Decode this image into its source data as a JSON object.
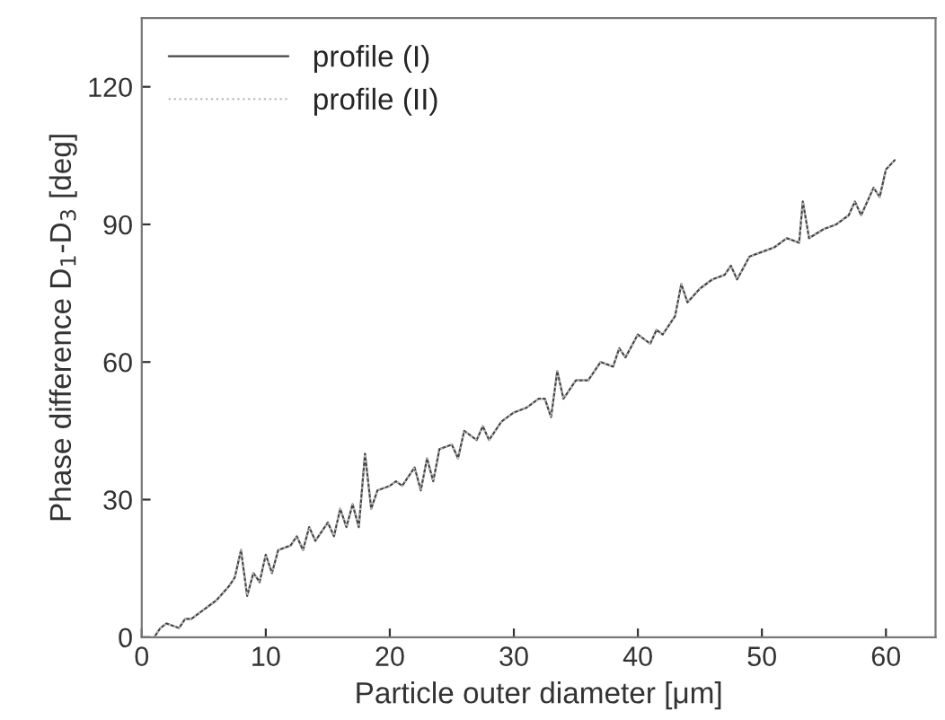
{
  "chart_data": {
    "type": "line",
    "xlabel": "Particle outer diameter [μm]",
    "ylabel": "Phase difference D$_{1}$-D$_{3}$ [deg]",
    "xlim": [
      0,
      64
    ],
    "ylim": [
      0,
      135
    ],
    "xticks": [
      0,
      10,
      20,
      30,
      40,
      50,
      60
    ],
    "yticks": [
      0,
      30,
      60,
      90,
      120
    ],
    "grid": false,
    "legend": "top left",
    "marker": "none",
    "x": [
      1,
      1.5,
      2,
      3,
      3.5,
      4,
      5,
      5.5,
      6,
      7,
      7.5,
      8,
      8.5,
      9,
      9.5,
      10,
      10.5,
      11,
      12,
      12.5,
      13,
      13.5,
      14,
      15,
      15.5,
      16,
      16.5,
      17,
      17.5,
      18,
      18.5,
      19,
      20,
      20.5,
      21,
      22,
      22.5,
      23,
      23.5,
      24,
      25,
      25.5,
      26,
      27,
      27.5,
      28,
      29,
      30,
      31,
      32,
      32.5,
      33,
      33.5,
      34,
      35,
      36,
      37,
      38,
      38.5,
      39,
      40,
      41,
      41.5,
      42,
      43,
      43.5,
      44,
      45,
      46,
      47,
      47.5,
      48,
      49,
      50,
      51,
      52,
      53,
      53.3,
      53.8,
      55,
      56,
      57,
      57.5,
      58,
      59,
      59.5,
      60,
      60.7
    ],
    "series": [
      {
        "name": "profile (I)",
        "color": "#444444",
        "line_style": "solid",
        "values": [
          0,
          2,
          3,
          2,
          4,
          4,
          6,
          7,
          8,
          11,
          13,
          19,
          9,
          14,
          12,
          18,
          14,
          19,
          20,
          22,
          19,
          24,
          21,
          25,
          22,
          28,
          24,
          29,
          24,
          40,
          28,
          32,
          33,
          34,
          33,
          37,
          32,
          39,
          34,
          41,
          42,
          39,
          45,
          43,
          46,
          43,
          47,
          49,
          50,
          52,
          52,
          48,
          58,
          52,
          56,
          56,
          60,
          59,
          63,
          61,
          66,
          64,
          67,
          66,
          70,
          77,
          73,
          76,
          78,
          79,
          81,
          78,
          83,
          84,
          85,
          87,
          86,
          95,
          87,
          89,
          90,
          92,
          95,
          92,
          98,
          96,
          102,
          104
        ]
      },
      {
        "name": "profile (II)",
        "color": "#bbbbbb",
        "line_style": "dotted",
        "values": [
          0,
          2,
          3,
          2,
          4,
          4,
          6,
          7,
          8,
          11,
          13,
          19,
          9,
          14,
          12,
          18,
          14,
          19,
          20,
          22,
          19,
          24,
          21,
          25,
          22,
          28,
          24,
          29,
          24,
          40,
          28,
          32,
          33,
          34,
          33,
          37,
          32,
          39,
          34,
          41,
          42,
          39,
          45,
          43,
          46,
          43,
          47,
          49,
          50,
          52,
          52,
          48,
          58,
          52,
          56,
          56,
          60,
          59,
          63,
          61,
          66,
          64,
          67,
          66,
          70,
          77,
          73,
          76,
          78,
          79,
          81,
          78,
          83,
          84,
          85,
          87,
          86,
          95,
          87,
          89,
          90,
          92,
          95,
          92,
          98,
          96,
          102,
          104
        ]
      }
    ]
  }
}
